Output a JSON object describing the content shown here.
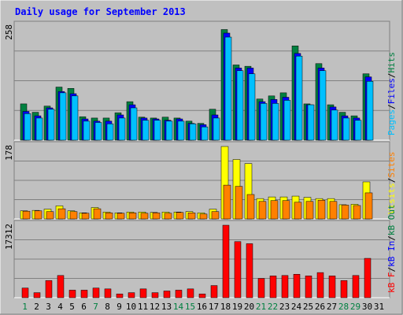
{
  "chart_data": {
    "type": "bar",
    "title": "Daily usage for September 2013",
    "days": [
      "1",
      "2",
      "3",
      "4",
      "5",
      "6",
      "7",
      "8",
      "9",
      "10",
      "11",
      "12",
      "13",
      "14",
      "15",
      "16",
      "17",
      "18",
      "19",
      "20",
      "21",
      "22",
      "23",
      "24",
      "25",
      "26",
      "27",
      "28",
      "29",
      "30",
      "31"
    ],
    "weekend_days": [
      "1",
      "7",
      "14",
      "15",
      "21",
      "22",
      "28",
      "29"
    ],
    "panels": [
      {
        "name": "pages-files-hits",
        "ylabel_max": "258",
        "ymax": 258,
        "legend": [
          "Pages",
          "/",
          "Files",
          "/",
          "Hits"
        ],
        "legend_colors": [
          "#00c0ff",
          "#000000",
          "#0000ff",
          "#000000",
          "#008040"
        ],
        "series": [
          {
            "name": "Hits",
            "color": "#008040",
            "values": [
              82,
              63,
              77,
              120,
              117,
              53,
              50,
              50,
              62,
              87,
              52,
              50,
              52,
              50,
              43,
              38,
              70,
              250,
              170,
              167,
              93,
              100,
              107,
              213,
              82,
              173,
              80,
              63,
              55,
              150,
              0
            ]
          },
          {
            "name": "Files",
            "color": "#0000ff",
            "values": [
              65,
              55,
              73,
              110,
              105,
              48,
              43,
              43,
              57,
              80,
              50,
              48,
              45,
              48,
              38,
              35,
              57,
              242,
              163,
              163,
              87,
              92,
              97,
              196,
              80,
              163,
              75,
              55,
              50,
              143,
              0
            ]
          },
          {
            "name": "Pages",
            "color": "#00c0ff",
            "values": [
              60,
              50,
              70,
              107,
              100,
              43,
              40,
              37,
              50,
              73,
              45,
              45,
              43,
              43,
              37,
              30,
              50,
              233,
              157,
              150,
              83,
              83,
              90,
              190,
              80,
              157,
              68,
              50,
              45,
              133,
              0
            ]
          }
        ]
      },
      {
        "name": "visits-sites",
        "ylabel_max": "178",
        "ymax": 178,
        "legend": [
          "Visits",
          "/",
          "Sites"
        ],
        "legend_colors": [
          "#ffff00",
          "#000000",
          "#ff8000"
        ],
        "series": [
          {
            "name": "Visits",
            "color": "#ffff00",
            "values": [
              20,
              21,
              24,
              32,
              20,
              15,
              28,
              17,
              15,
              17,
              17,
              16,
              17,
              17,
              18,
              15,
              24,
              178,
              146,
              136,
              50,
              54,
              54,
              56,
              53,
              50,
              50,
              35,
              36,
              91,
              0
            ]
          },
          {
            "name": "Sites",
            "color": "#ff8000",
            "values": [
              19,
              20,
              18,
              25,
              18,
              14,
              25,
              15,
              14,
              15,
              14,
              15,
              14,
              16,
              15,
              12,
              18,
              83,
              80,
              60,
              43,
              45,
              45,
              41,
              43,
              46,
              43,
              34,
              33,
              64,
              0
            ]
          }
        ]
      },
      {
        "name": "kbf-kbin-kbout",
        "ylabel_max": "17312",
        "ymax": 17312,
        "legend": [
          "kB F",
          "/",
          "kB In",
          "/",
          "kB Out"
        ],
        "legend_colors": [
          "#ff0000",
          "#000000",
          "#0000ff",
          "#000000",
          "#008040"
        ],
        "series": [
          {
            "name": "kB F",
            "color": "#ff0000",
            "values": [
              2300,
              1200,
              4100,
              5300,
              1800,
              1800,
              2300,
              2100,
              900,
              1200,
              2100,
              1200,
              1600,
              1800,
              2100,
              900,
              2900,
              17312,
              13400,
              12900,
              4600,
              5200,
              5300,
              5600,
              5200,
              6000,
              5200,
              4100,
              5300,
              9400,
              0
            ]
          }
        ]
      }
    ]
  }
}
